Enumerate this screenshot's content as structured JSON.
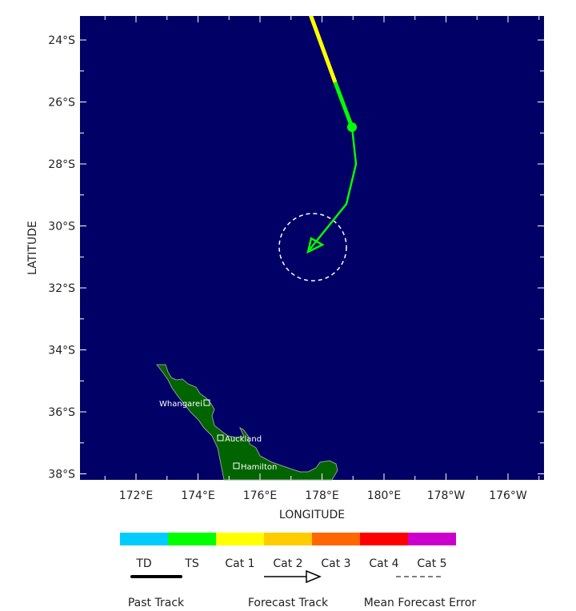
{
  "map": {
    "xlabel": "LONGITUDE",
    "ylabel": "LATITUDE",
    "lon_ticks": [
      "172°E",
      "174°E",
      "176°E",
      "178°E",
      "180°E",
      "178°W",
      "176°W"
    ],
    "lat_ticks": [
      "24°S",
      "26°S",
      "28°S",
      "30°S",
      "32°S",
      "34°S",
      "36°S",
      "38°S"
    ],
    "cities": [
      "Whangarei",
      "Auckland",
      "Hamilton"
    ],
    "colors": {
      "ocean": "#000066",
      "land": "#006400",
      "coast": "#999999",
      "past_track_ts": "#00ff00",
      "past_track_cat1": "#ffff00",
      "forecast_track": "#00ff00",
      "error_cone": "#ffffff"
    }
  },
  "legend": {
    "categories": [
      {
        "label": "TD",
        "color": "#00ccff"
      },
      {
        "label": "TS",
        "color": "#00ff00"
      },
      {
        "label": "Cat 1",
        "color": "#ffff00"
      },
      {
        "label": "Cat 2",
        "color": "#ffcc00"
      },
      {
        "label": "Cat 3",
        "color": "#ff6600"
      },
      {
        "label": "Cat 4",
        "color": "#ff0000"
      },
      {
        "label": "Cat 5",
        "color": "#cc00cc"
      }
    ],
    "past_track": "Past Track",
    "forecast_track": "Forecast Track",
    "mean_error": "Mean Forecast Error"
  }
}
